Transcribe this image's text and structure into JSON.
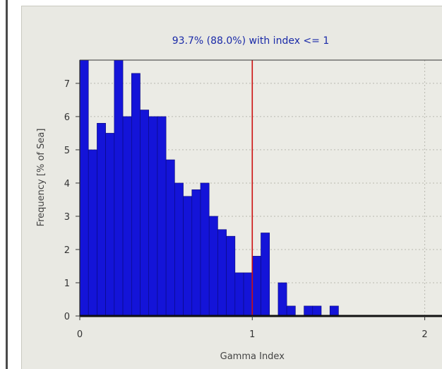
{
  "chart_data": {
    "type": "bar",
    "title": "93.7% (88.0%) with index <= 1",
    "xlabel": "Gamma Index",
    "ylabel": "Frequency [% of Sea]",
    "xlim": [
      0,
      2.1
    ],
    "ylim": [
      0,
      7.7
    ],
    "bin_width": 0.05,
    "x_ticks": [
      0,
      1,
      2
    ],
    "y_ticks": [
      0,
      1,
      2,
      3,
      4,
      5,
      6,
      7
    ],
    "threshold": 1,
    "grid": true,
    "bins": [
      {
        "x": 0.0,
        "y": 7.7
      },
      {
        "x": 0.05,
        "y": 5.0
      },
      {
        "x": 0.1,
        "y": 5.8
      },
      {
        "x": 0.15,
        "y": 5.5
      },
      {
        "x": 0.2,
        "y": 7.7
      },
      {
        "x": 0.25,
        "y": 6.0
      },
      {
        "x": 0.3,
        "y": 7.3
      },
      {
        "x": 0.35,
        "y": 6.2
      },
      {
        "x": 0.4,
        "y": 6.0
      },
      {
        "x": 0.45,
        "y": 6.0
      },
      {
        "x": 0.5,
        "y": 4.7
      },
      {
        "x": 0.55,
        "y": 4.0
      },
      {
        "x": 0.6,
        "y": 3.6
      },
      {
        "x": 0.65,
        "y": 3.8
      },
      {
        "x": 0.7,
        "y": 4.0
      },
      {
        "x": 0.75,
        "y": 3.0
      },
      {
        "x": 0.8,
        "y": 2.6
      },
      {
        "x": 0.85,
        "y": 2.4
      },
      {
        "x": 0.9,
        "y": 1.3
      },
      {
        "x": 0.95,
        "y": 1.3
      },
      {
        "x": 1.0,
        "y": 1.8
      },
      {
        "x": 1.05,
        "y": 2.5
      },
      {
        "x": 1.1,
        "y": 0.0
      },
      {
        "x": 1.15,
        "y": 1.0
      },
      {
        "x": 1.2,
        "y": 0.3
      },
      {
        "x": 1.25,
        "y": 0.0
      },
      {
        "x": 1.3,
        "y": 0.3
      },
      {
        "x": 1.35,
        "y": 0.3
      },
      {
        "x": 1.4,
        "y": 0.0
      },
      {
        "x": 1.45,
        "y": 0.3
      }
    ],
    "colors": {
      "bar": "#1414d8",
      "bar_edge": "#0a0a7a",
      "threshold": "#cc1010",
      "grid": "#b8b8b0",
      "title": "#1a2aa8"
    }
  }
}
